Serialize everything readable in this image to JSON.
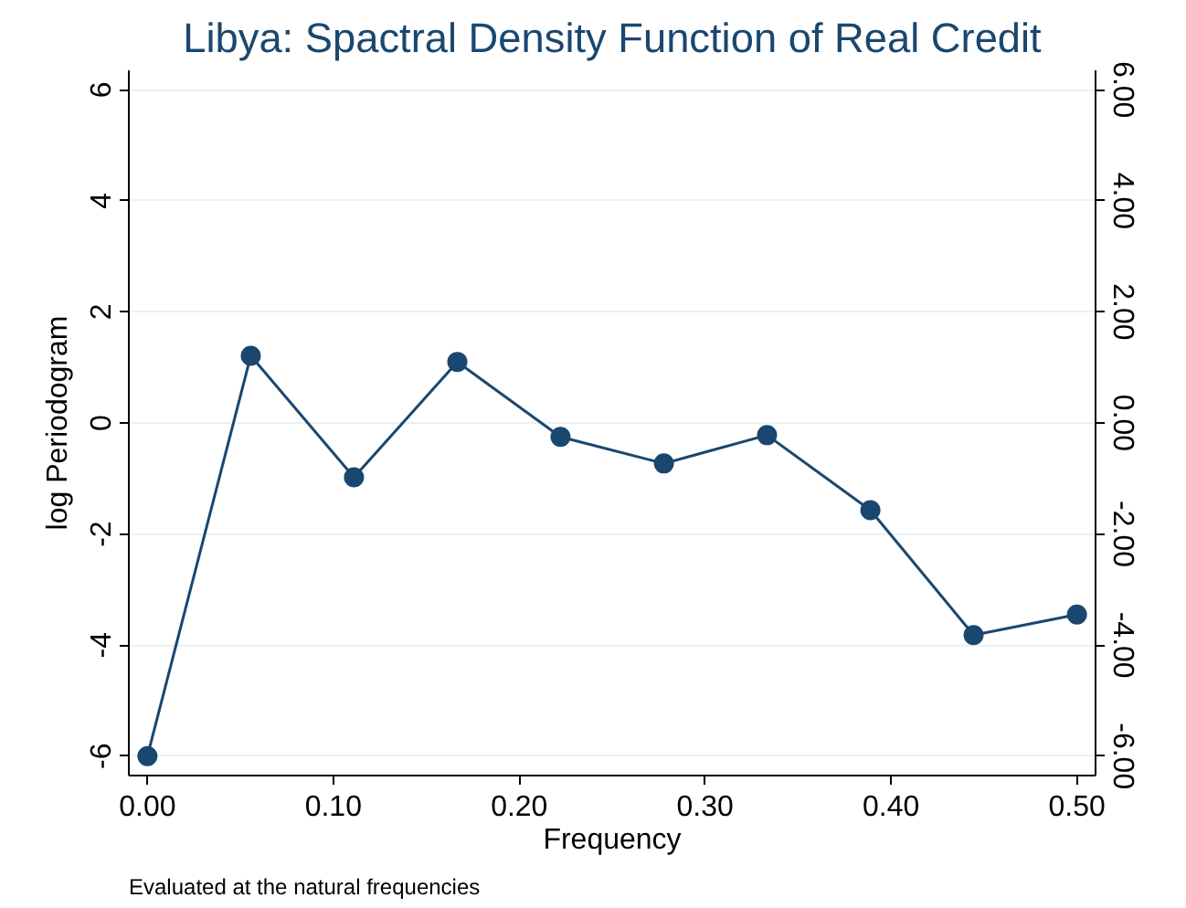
{
  "chart_data": {
    "type": "line",
    "title": "Libya: Spactral Density Function of Real Credit",
    "xlabel": "Frequency",
    "ylabel": "log Periodogram",
    "annotations": [
      "Evaluated at the natural frequencies"
    ],
    "x": [
      0,
      0.0556,
      0.1111,
      0.1667,
      0.2222,
      0.2778,
      0.3333,
      0.3889,
      0.4444,
      0.5
    ],
    "series": [
      {
        "color": "#1a476f",
        "values": [
          -6,
          1.21,
          -0.98,
          1.1,
          -0.25,
          -0.73,
          -0.22,
          -1.57,
          -3.82,
          -3.45
        ]
      }
    ],
    "marker": "circle",
    "line_style": "solid",
    "grid": "y",
    "xlim": [
      -0.01,
      0.51
    ],
    "xticks": [
      {
        "value": 0,
        "label": "0.00"
      },
      {
        "value": 0.1,
        "label": "0.10"
      },
      {
        "value": 0.2,
        "label": "0.20"
      },
      {
        "value": 0.3,
        "label": "0.30"
      },
      {
        "value": 0.4,
        "label": "0.40"
      },
      {
        "value": 0.5,
        "label": "0.50"
      }
    ],
    "ylim": [
      -6.35,
      6.35
    ],
    "yticks": [
      -6,
      -4,
      -2,
      0,
      2,
      4,
      6
    ],
    "y2lim": [
      -6.35,
      6.35
    ],
    "y2ticks": [
      {
        "value": -6,
        "label": "-6.00"
      },
      {
        "value": -4,
        "label": "-4.00"
      },
      {
        "value": -2,
        "label": "-2.00"
      },
      {
        "value": 0,
        "label": "0.00"
      },
      {
        "value": 2,
        "label": "2.00"
      },
      {
        "value": 4,
        "label": "4.00"
      },
      {
        "value": 6,
        "label": "6.00"
      }
    ]
  }
}
